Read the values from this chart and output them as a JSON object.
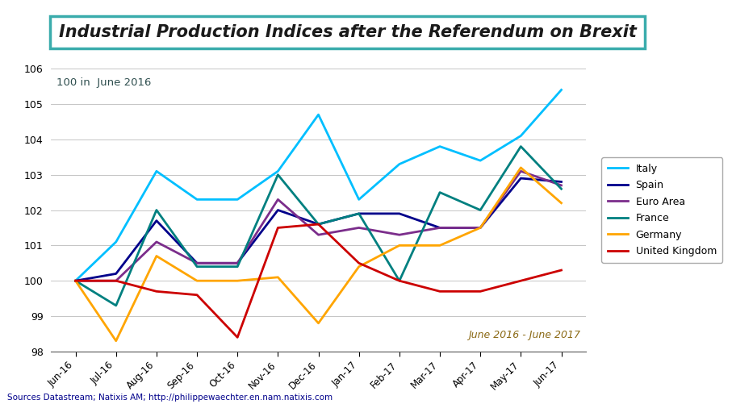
{
  "title": "Industrial Production Indices after the Referendum on Brexit",
  "annotation_top": "100 in  June 2016",
  "annotation_bottom": "June 2016 - June 2017",
  "source": "Sources Datastream; Natixis AM; http://philippewaechter.en.nam.natixis.com",
  "x_labels": [
    "Jun-16",
    "Jul-16",
    "Aug-16",
    "Sep-16",
    "Oct-16",
    "Nov-16",
    "Dec-16",
    "Jan-17",
    "Feb-17",
    "Mar-17",
    "Apr-17",
    "May-17",
    "Jun-17"
  ],
  "ylim": [
    98,
    106
  ],
  "yticks": [
    98,
    99,
    100,
    101,
    102,
    103,
    104,
    105,
    106
  ],
  "series": {
    "Italy": {
      "color": "#00BFFF",
      "values": [
        100.0,
        101.1,
        103.1,
        102.3,
        102.3,
        103.1,
        104.7,
        102.3,
        103.3,
        103.8,
        103.4,
        104.1,
        105.4
      ]
    },
    "Spain": {
      "color": "#00008B",
      "values": [
        100.0,
        100.2,
        101.7,
        100.5,
        100.5,
        102.0,
        101.6,
        101.9,
        101.9,
        101.5,
        101.5,
        102.9,
        102.8
      ]
    },
    "Euro Area": {
      "color": "#7B2D8B",
      "values": [
        100.0,
        100.0,
        101.1,
        100.5,
        100.5,
        102.3,
        101.3,
        101.5,
        101.3,
        101.5,
        101.5,
        103.1,
        102.7
      ]
    },
    "France": {
      "color": "#008080",
      "values": [
        100.0,
        99.3,
        102.0,
        100.4,
        100.4,
        103.0,
        101.6,
        101.9,
        100.0,
        102.5,
        102.0,
        103.8,
        102.6
      ]
    },
    "Germany": {
      "color": "#FFA500",
      "values": [
        100.0,
        98.3,
        100.7,
        100.0,
        100.0,
        100.1,
        98.8,
        100.4,
        101.0,
        101.0,
        101.5,
        103.2,
        102.2
      ]
    },
    "United Kingdom": {
      "color": "#CC0000",
      "values": [
        100.0,
        100.0,
        99.7,
        99.6,
        98.4,
        101.5,
        101.6,
        100.5,
        100.0,
        99.7,
        99.7,
        100.0,
        100.3
      ]
    }
  },
  "title_fontsize": 15,
  "title_box_color": "#3AACAC",
  "title_text_color": "#1a1a1a",
  "annotation_top_color": "#2F4F4F",
  "annotation_bottom_color": "#8B6914",
  "source_color": "#00008B",
  "background_color": "#FFFFFF",
  "grid_color": "#BBBBBB",
  "line_width": 2.0
}
